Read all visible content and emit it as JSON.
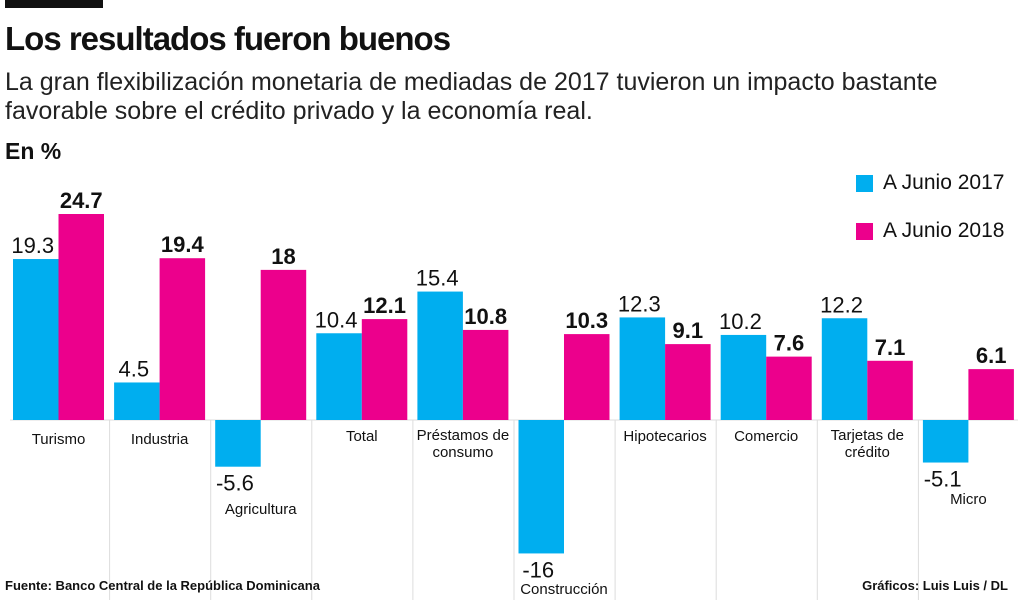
{
  "title": "Los resultados fueron buenos",
  "subtitle": "La gran flexibilización monetaria de mediadas de 2017 tuvieron un impacto bastante favorable sobre el crédito privado y la economía real.",
  "unit_label": "En %",
  "source": "Fuente: Banco Central de la República Dominicana",
  "credit": "Gráficos: Luis Luis / DL",
  "chart_data": {
    "type": "bar",
    "categories": [
      "Turismo",
      "Industria",
      "Agricultura",
      "Total",
      "Préstamos de consumo",
      "Construcción",
      "Hipotecarios",
      "Comercio",
      "Tarjetas de crédito",
      "Micro"
    ],
    "series": [
      {
        "name": "A Junio 2017",
        "color": "#00AEEF",
        "values": [
          19.3,
          4.5,
          -5.6,
          10.4,
          15.4,
          -16,
          12.3,
          10.2,
          12.2,
          -5.1
        ]
      },
      {
        "name": "A Junio 2018",
        "color": "#EC008C",
        "values": [
          24.7,
          19.4,
          18,
          12.1,
          10.8,
          10.3,
          9.1,
          7.6,
          7.1,
          6.1
        ]
      }
    ],
    "ylabel": "En %",
    "legend": "top-right",
    "grid": false
  }
}
